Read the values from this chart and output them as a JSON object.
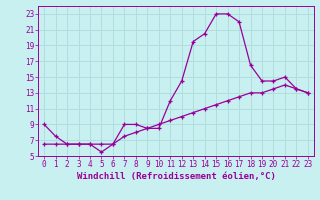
{
  "xlabel": "Windchill (Refroidissement éolien,°C)",
  "background_color": "#c8f0f0",
  "grid_color": "#b0dede",
  "line_color": "#990099",
  "x_values": [
    0,
    1,
    2,
    3,
    4,
    5,
    6,
    7,
    8,
    9,
    10,
    11,
    12,
    13,
    14,
    15,
    16,
    17,
    18,
    19,
    20,
    21,
    22,
    23
  ],
  "temp_values": [
    9.0,
    7.5,
    6.5,
    6.5,
    6.5,
    5.5,
    6.5,
    9.0,
    9.0,
    8.5,
    8.5,
    12.0,
    14.5,
    19.5,
    20.5,
    23.0,
    23.0,
    22.0,
    16.5,
    14.5,
    14.5,
    15.0,
    13.5,
    13.0
  ],
  "wind_values": [
    6.5,
    6.5,
    6.5,
    6.5,
    6.5,
    6.5,
    6.5,
    7.5,
    8.0,
    8.5,
    9.0,
    9.5,
    10.0,
    10.5,
    11.0,
    11.5,
    12.0,
    12.5,
    13.0,
    13.0,
    13.5,
    14.0,
    13.5,
    13.0
  ],
  "xlim": [
    -0.5,
    23.5
  ],
  "ylim": [
    5,
    24
  ],
  "xticks": [
    0,
    1,
    2,
    3,
    4,
    5,
    6,
    7,
    8,
    9,
    10,
    11,
    12,
    13,
    14,
    15,
    16,
    17,
    18,
    19,
    20,
    21,
    22,
    23
  ],
  "yticks": [
    5,
    7,
    9,
    11,
    13,
    15,
    17,
    19,
    21,
    23
  ],
  "tick_fontsize": 5.5,
  "xlabel_fontsize": 6.5
}
